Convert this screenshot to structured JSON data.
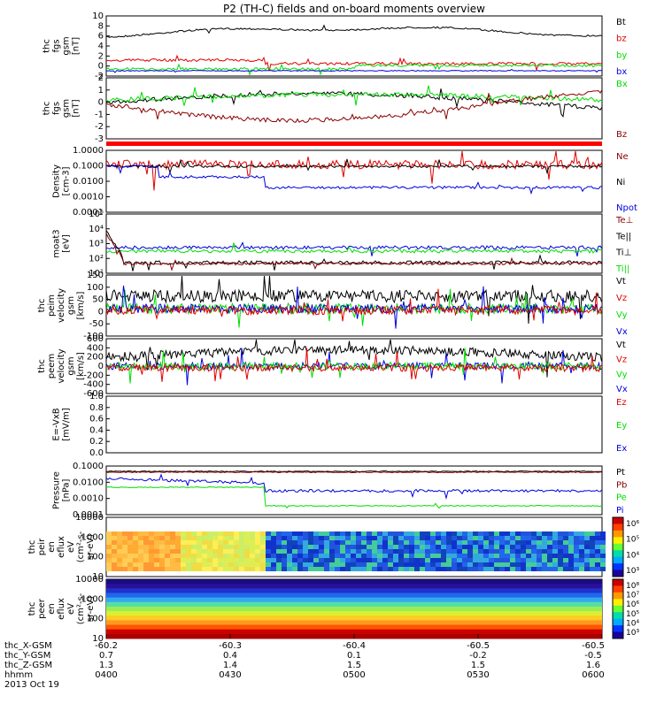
{
  "title": "P2 (TH-C) fields and on-board moments overview",
  "colors": {
    "black": "#000000",
    "red": "#e00000",
    "darkred": "#8b0000",
    "green": "#00dd00",
    "blue": "#0000e0",
    "gray": "#888888"
  },
  "panels": [
    {
      "id": "fgs",
      "ylabel": [
        "thc",
        "fgs",
        "gsm",
        "[nT]"
      ],
      "ticks": [
        "10",
        "8",
        "6",
        "4",
        "2",
        "0",
        "-2"
      ],
      "legend": [
        {
          "t": "Bt",
          "c": "black"
        },
        {
          "t": "bz",
          "c": "red"
        },
        {
          "t": "by",
          "c": "green"
        },
        {
          "t": "bx",
          "c": "blue"
        }
      ]
    },
    {
      "id": "fgs_dsl",
      "ylabel": [
        "thc",
        "fgs",
        "gsm",
        "[nT]"
      ],
      "ticks": [
        "2",
        "1",
        "0",
        "-1",
        "-2",
        "-3"
      ],
      "legend": [
        {
          "t": "Bx",
          "c": "green"
        },
        {
          "t": "Bz",
          "c": "darkred"
        }
      ]
    },
    {
      "id": "density",
      "ylabel": [
        "Density",
        "[cm-3]"
      ],
      "ticks": [
        "1.0000",
        "0.1000",
        "0.0100",
        "0.0010",
        "0.0001"
      ],
      "legend": [
        {
          "t": "Ne",
          "c": "darkred"
        },
        {
          "t": "Ni",
          "c": "black"
        },
        {
          "t": "Npot",
          "c": "blue"
        }
      ]
    },
    {
      "id": "temp",
      "ylabel": [
        "moat3",
        "[eV]"
      ],
      "ticks": [
        "10⁵",
        "10⁴",
        "10³",
        "10²",
        "10¹"
      ],
      "legend": [
        {
          "t": "Te⊥",
          "c": "darkred"
        },
        {
          "t": "Te||",
          "c": "black"
        },
        {
          "t": "Ti⊥",
          "c": "black"
        },
        {
          "t": "Ti||",
          "c": "green"
        }
      ]
    },
    {
      "id": "velp",
      "ylabel": [
        "thc",
        "peim",
        "velocity",
        "gsm",
        "[km/s]"
      ],
      "ticks": [
        "150",
        "100",
        "50",
        "0",
        "-50",
        "-100"
      ],
      "legend": [
        {
          "t": "Vt",
          "c": "black"
        },
        {
          "t": "Vz",
          "c": "red"
        },
        {
          "t": "Vy",
          "c": "green"
        },
        {
          "t": "Vx",
          "c": "blue"
        }
      ]
    },
    {
      "id": "vele",
      "ylabel": [
        "thc",
        "peem",
        "velocity",
        "gsm",
        "[km/s]"
      ],
      "ticks": [
        "600",
        "400",
        "200",
        "0",
        "-200",
        "-400",
        "-600"
      ],
      "legend": [
        {
          "t": "Vt",
          "c": "black"
        },
        {
          "t": "Vz",
          "c": "red"
        },
        {
          "t": "Vy",
          "c": "green"
        },
        {
          "t": "Vx",
          "c": "blue"
        }
      ]
    },
    {
      "id": "efield",
      "ylabel": [
        "E=-VxB",
        "[mV/m]"
      ],
      "ticks": [
        "1.0",
        "0.8",
        "0.6",
        "0.4",
        "0.2",
        "0.0"
      ],
      "legend": [
        {
          "t": "Ez",
          "c": "red"
        },
        {
          "t": "Ey",
          "c": "green"
        },
        {
          "t": "Ex",
          "c": "blue"
        }
      ]
    },
    {
      "id": "pressure",
      "ylabel": [
        "Pressure",
        "[nPa]"
      ],
      "ticks": [
        "0.1000",
        "0.0100",
        "0.0010",
        "0.0001"
      ],
      "legend": [
        {
          "t": "Pt",
          "c": "black"
        },
        {
          "t": "Pb",
          "c": "darkred"
        },
        {
          "t": "Pe",
          "c": "green"
        },
        {
          "t": "Pi",
          "c": "blue"
        }
      ]
    },
    {
      "id": "ion_spec",
      "ylabel": [
        "thc",
        "peir",
        "en",
        "eflux",
        "eV",
        "(cm²-s-",
        "sr-eV)"
      ],
      "ticks": [
        "10000",
        "1000",
        "100",
        "10"
      ],
      "cbar": [
        "10⁶",
        "10⁵",
        "10⁴",
        "10³"
      ]
    },
    {
      "id": "elec_spec",
      "ylabel": [
        "thc",
        "peer",
        "en",
        "eflux",
        "eV",
        "(cm²-s-",
        "sr-eV)"
      ],
      "ticks": [
        "10000",
        "1000",
        "100",
        "10"
      ],
      "cbar": [
        "10⁸",
        "10⁷",
        "10⁶",
        "10⁵",
        "10⁴",
        "10³"
      ]
    }
  ],
  "xaxis": {
    "rows": [
      {
        "label": "thc_X-GSM",
        "values": [
          "-60.2",
          "-60.3",
          "-60.4",
          "-60.5",
          "-60.5"
        ]
      },
      {
        "label": "thc_Y-GSM",
        "values": [
          "0.7",
          "0.4",
          "0.1",
          "-0.2",
          "-0.5"
        ]
      },
      {
        "label": "thc_Z-GSM",
        "values": [
          "1.3",
          "1.4",
          "1.5",
          "1.5",
          "1.6"
        ]
      },
      {
        "label": "hhmm",
        "values": [
          "0400",
          "0430",
          "0500",
          "0530",
          "0600"
        ]
      }
    ],
    "date": "2013 Oct 19"
  },
  "chart_data": {
    "type": "line",
    "title": "P2 (TH-C) fields and on-board moments overview",
    "x": [
      "0400",
      "0430",
      "0500",
      "0530",
      "0600"
    ],
    "series": [
      {
        "name": "Bt",
        "values": [
          6.0,
          7.0,
          7.8,
          7.0,
          6.0
        ]
      },
      {
        "name": "bz",
        "values": [
          1.0,
          0.5,
          0.5,
          0.5,
          1.0
        ]
      },
      {
        "name": "by",
        "values": [
          0.3,
          0.5,
          0.7,
          0.6,
          0.8
        ]
      },
      {
        "name": "bx",
        "values": [
          0.0,
          0.0,
          -0.5,
          0.0,
          0.0
        ]
      }
    ],
    "ylim": [
      -2,
      10
    ]
  }
}
